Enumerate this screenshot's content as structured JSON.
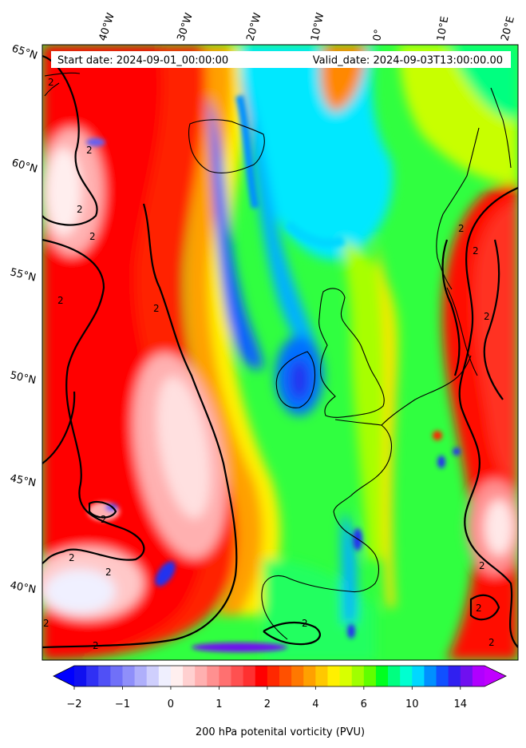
{
  "header": {
    "start_text": "Start date: 2024-09-01_00:00:00",
    "valid_text": "Valid_date: 2024-09-03T13:00:00.00"
  },
  "longitude_labels": [
    "40°W",
    "30°W",
    "20°W",
    "10°W",
    "0°",
    "10°E",
    "20°E"
  ],
  "latitude_labels": [
    "65°N",
    "60°N",
    "55°N",
    "50°N",
    "45°N",
    "40°N"
  ],
  "colorbar": {
    "title": "200 hPa potenital vorticity (PVU)",
    "ticks": [
      "−2",
      "−1",
      "0",
      "1",
      "2",
      "4",
      "6",
      "10",
      "14"
    ],
    "levels": [
      -2,
      -1.75,
      -1.5,
      -1.25,
      -1,
      -0.75,
      -0.5,
      -0.25,
      0,
      0.25,
      0.5,
      0.75,
      1,
      1.25,
      1.5,
      1.75,
      2,
      2.5,
      3,
      3.5,
      4,
      4.5,
      5,
      5.5,
      6,
      7,
      8,
      9,
      10,
      11,
      12,
      13,
      14,
      15
    ],
    "colors": [
      "#1010f0",
      "#3030f4",
      "#5050f6",
      "#7070f8",
      "#8f8ffa",
      "#afaffb",
      "#cfcffd",
      "#efeffe",
      "#ffefef",
      "#ffd0d0",
      "#ffb0b0",
      "#ff9090",
      "#ff7070",
      "#ff5050",
      "#ff3030",
      "#ff0000",
      "#ff2800",
      "#ff5000",
      "#ff7800",
      "#ffa000",
      "#ffc800",
      "#fff000",
      "#d8ff00",
      "#a0ff00",
      "#60ff00",
      "#00ff20",
      "#00ff80",
      "#00ffd0",
      "#00d8ff",
      "#0090ff",
      "#1050ff",
      "#3020f0",
      "#7010f0",
      "#b000ff"
    ],
    "extend": "both"
  },
  "contour_labels": [
    "2",
    "2",
    "2",
    "2",
    "2",
    "2",
    "2",
    "2",
    "2",
    "2",
    "2",
    "2",
    "2",
    "2",
    "2",
    "2",
    "2",
    "2"
  ]
}
